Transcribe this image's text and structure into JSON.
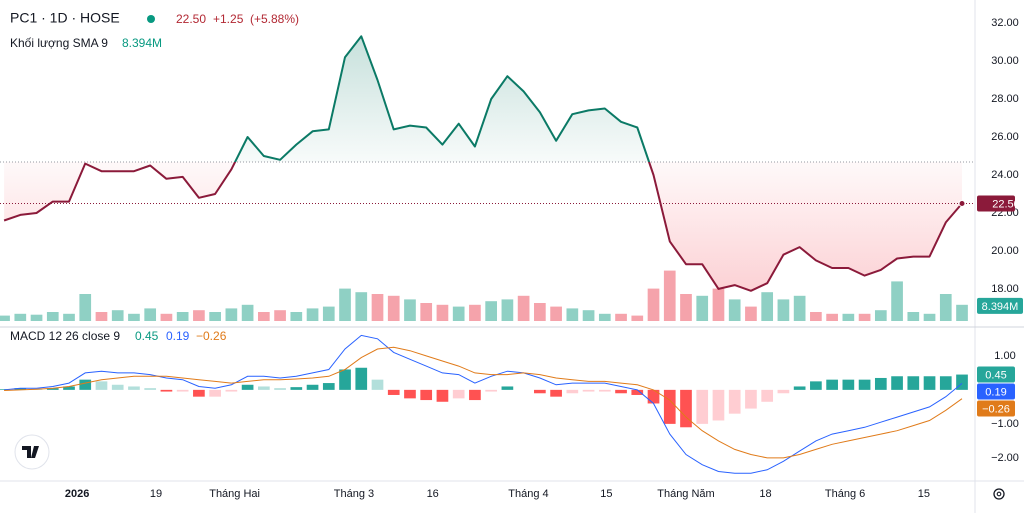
{
  "chart_data": [
    {
      "type": "baseline-area",
      "title": "PC1 · 1D · HOSE",
      "price": "22.50",
      "change": "+1.25",
      "change_pct": "(+5.88%)",
      "x": [
        0,
        1,
        2,
        3,
        4,
        5,
        6,
        7,
        8,
        9,
        10,
        11,
        12,
        13,
        14,
        15,
        16,
        17,
        18,
        19,
        20,
        21,
        22,
        23,
        24,
        25,
        26,
        27,
        28,
        29,
        30,
        31,
        32,
        33,
        34,
        35,
        36,
        37,
        38,
        39,
        40,
        41,
        42,
        43,
        44,
        45,
        46,
        47,
        48,
        49,
        50,
        51,
        52,
        53,
        54,
        55,
        56,
        57,
        58,
        59
      ],
      "values": [
        21.6,
        21.9,
        22.0,
        22.6,
        22.6,
        24.6,
        24.2,
        24.2,
        24.2,
        24.5,
        23.8,
        23.9,
        22.8,
        23.0,
        24.3,
        26.0,
        25.0,
        24.8,
        25.6,
        26.3,
        26.4,
        30.2,
        31.3,
        29.0,
        26.4,
        26.6,
        26.5,
        25.6,
        26.7,
        25.5,
        28.0,
        29.2,
        28.4,
        27.3,
        25.8,
        27.2,
        27.4,
        27.5,
        26.8,
        26.5,
        24.0,
        20.5,
        19.3,
        19.3,
        18.0,
        18.2,
        17.9,
        18.3,
        19.8,
        20.2,
        19.5,
        19.1,
        19.1,
        18.7,
        19.0,
        19.6,
        19.7,
        19.7,
        21.5,
        22.5
      ],
      "baseline": 24.68,
      "up_color": "#0b7a66",
      "down_color": "#8b1a3a",
      "xlim": [
        -0.25,
        59.8
      ],
      "ylim": [
        16.1,
        32.95
      ],
      "yticks": [
        {
          "value": 32,
          "label": "32.00"
        },
        {
          "value": 30,
          "label": "30.00"
        },
        {
          "value": 28,
          "label": "28.00"
        },
        {
          "value": 26,
          "label": "26.00"
        },
        {
          "value": 24,
          "label": "24.00"
        },
        {
          "value": 22,
          "label": "22.00"
        },
        {
          "value": 20,
          "label": "20.00"
        },
        {
          "value": 18,
          "label": "18.00"
        }
      ],
      "xticks": [
        {
          "value": 4.5,
          "label": "2026"
        },
        {
          "value": 9.36,
          "label": "19"
        },
        {
          "value": 14.2,
          "label": "Tháng Hai"
        },
        {
          "value": 21.55,
          "label": "Tháng 3"
        },
        {
          "value": 26.4,
          "label": "16"
        },
        {
          "value": 32.3,
          "label": "Tháng 4"
        },
        {
          "value": 37.1,
          "label": "15"
        },
        {
          "value": 42,
          "label": "Tháng Năm"
        },
        {
          "value": 46.9,
          "label": "18"
        },
        {
          "value": 51.8,
          "label": "Tháng 6"
        },
        {
          "value": 56.65,
          "label": "15"
        }
      ],
      "grid": false
    },
    {
      "type": "volume",
      "name": "Khối lượng SMA 9",
      "sma": 8.394,
      "sma_label": "8.394M",
      "values": [
        3,
        4,
        3.5,
        5,
        4,
        15,
        5,
        6,
        4,
        7,
        4,
        5,
        6,
        5,
        7,
        9,
        5,
        6,
        5,
        7,
        8,
        18,
        16,
        15,
        14,
        12,
        10,
        9,
        8,
        9,
        11,
        12,
        14,
        10,
        8,
        7,
        6,
        4,
        4,
        3,
        18,
        28,
        15,
        14,
        18,
        12,
        8,
        16,
        12,
        14,
        5,
        4,
        4,
        4,
        6,
        22,
        5,
        4,
        15,
        9
      ],
      "up_color": "#8fd0c4",
      "down_color": "#f5a3ab"
    },
    {
      "type": "macd",
      "title": "MACD 12 26 close 9",
      "series": [
        {
          "kind": "histogram",
          "color": "#26a69a",
          "values": [
            0.02,
            0.05,
            0.03,
            0.05,
            0.1,
            0.3,
            0.25,
            0.15,
            0.1,
            0.05,
            -0.05,
            -0.05,
            -0.2,
            -0.2,
            -0.05,
            0.15,
            0.1,
            0.05,
            0.08,
            0.15,
            0.2,
            0.6,
            0.65,
            0.3,
            -0.15,
            -0.25,
            -0.3,
            -0.35,
            -0.25,
            -0.3,
            -0.05,
            0.1,
            0.0,
            -0.1,
            -0.2,
            -0.1,
            -0.05,
            -0.05,
            -0.1,
            -0.15,
            -0.4,
            -1.0,
            -1.1,
            -1.0,
            -0.9,
            -0.7,
            -0.55,
            -0.35,
            -0.1,
            0.1,
            0.25,
            0.3,
            0.3,
            0.3,
            0.35,
            0.4,
            0.4,
            0.4,
            0.4,
            0.45
          ]
        },
        {
          "kind": "line",
          "color": "#2962ff",
          "values": [
            0.0,
            0.05,
            0.05,
            0.1,
            0.2,
            0.5,
            0.55,
            0.5,
            0.5,
            0.45,
            0.35,
            0.3,
            0.1,
            0.05,
            0.15,
            0.4,
            0.4,
            0.35,
            0.4,
            0.5,
            0.6,
            1.2,
            1.6,
            1.5,
            1.1,
            0.9,
            0.7,
            0.5,
            0.45,
            0.2,
            0.4,
            0.55,
            0.5,
            0.35,
            0.15,
            0.2,
            0.2,
            0.2,
            0.1,
            0.0,
            -0.4,
            -1.3,
            -1.9,
            -2.2,
            -2.4,
            -2.45,
            -2.45,
            -2.35,
            -2.1,
            -1.8,
            -1.5,
            -1.3,
            -1.2,
            -1.1,
            -0.95,
            -0.8,
            -0.65,
            -0.5,
            -0.2,
            0.19
          ]
        },
        {
          "kind": "line",
          "color": "#e07b1a",
          "last_label": "−0.26",
          "values": [
            -0.02,
            0.0,
            0.02,
            0.05,
            0.1,
            0.2,
            0.3,
            0.35,
            0.4,
            0.4,
            0.4,
            0.35,
            0.3,
            0.25,
            0.2,
            0.25,
            0.3,
            0.3,
            0.32,
            0.35,
            0.4,
            0.6,
            0.95,
            1.2,
            1.25,
            1.15,
            1.0,
            0.85,
            0.7,
            0.5,
            0.45,
            0.45,
            0.5,
            0.45,
            0.35,
            0.3,
            0.25,
            0.25,
            0.2,
            0.15,
            0.0,
            -0.3,
            -0.8,
            -1.2,
            -1.5,
            -1.75,
            -1.9,
            -2.0,
            -2.0,
            -1.9,
            -1.75,
            -1.6,
            -1.5,
            -1.4,
            -1.3,
            -1.2,
            -1.05,
            -0.9,
            -0.6,
            -0.26
          ]
        }
      ],
      "hist_colors": {
        "up_strong": "#26a69a",
        "up_weak": "#b2dfdb",
        "down_strong": "#ff5252",
        "down_weak": "#ffcdd2"
      },
      "ylim": [
        -2.65,
        1.76
      ],
      "yticks": [
        {
          "value": 1,
          "label": "1.00"
        },
        {
          "value": -1,
          "label": "−1.00"
        },
        {
          "value": -2,
          "label": "−2.00"
        }
      ]
    }
  ]
}
